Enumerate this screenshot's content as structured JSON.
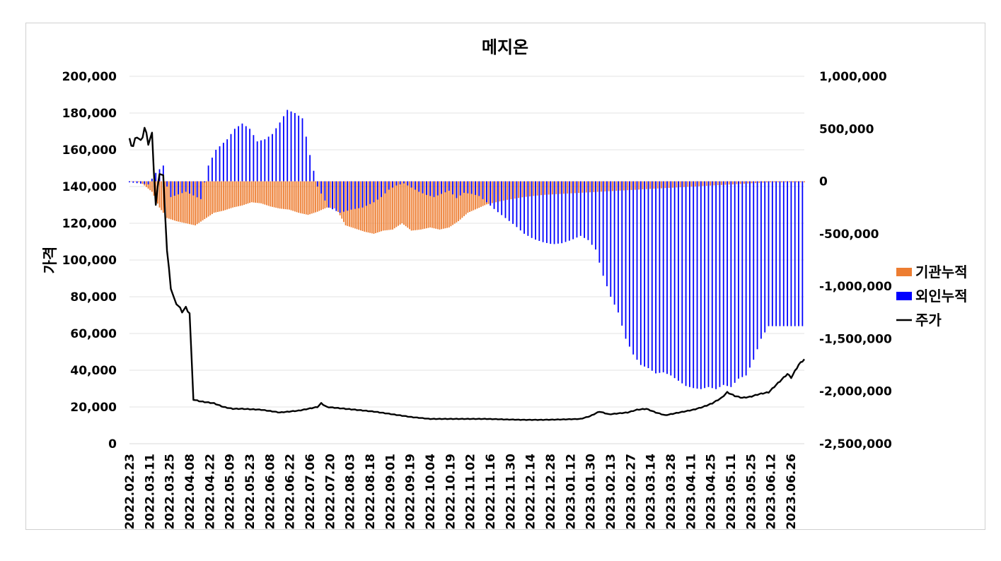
{
  "chart_data": {
    "type": "bar",
    "title": "메지온",
    "ylabel": "가격",
    "y2label": "",
    "ylim": [
      0,
      200000
    ],
    "y2lim": [
      -2500000,
      1000000
    ],
    "y_ticks": [
      "200,000",
      "180,000",
      "160,000",
      "140,000",
      "120,000",
      "100,000",
      "80,000",
      "60,000",
      "40,000",
      "20,000",
      "0"
    ],
    "y2_ticks": [
      "1,000,000",
      "500,000",
      "0",
      "-500,000",
      "-1,000,000",
      "-1,500,000",
      "-2,000,000",
      "-2,500,000"
    ],
    "x_labels": [
      "2022.02.23",
      "2022.03.11",
      "2022.03.25",
      "2022.04.08",
      "2022.04.22",
      "2022.05.09",
      "2022.05.23",
      "2022.06.08",
      "2022.06.22",
      "2022.07.06",
      "2022.07.20",
      "2022.08.03",
      "2022.08.18",
      "2022.09.01",
      "2022.09.19",
      "2022.10.04",
      "2022.10.19",
      "2022.11.02",
      "2022.11.16",
      "2022.11.30",
      "2022.12.14",
      "2022.12.28",
      "2023.01.12",
      "2023.01.30",
      "2023.02.13",
      "2023.02.27",
      "2023.03.14",
      "2023.03.28",
      "2023.04.11",
      "2023.04.25",
      "2023.05.11",
      "2023.05.25",
      "2023.06.12",
      "2023.06.26"
    ],
    "legend_position": "right",
    "grid": true,
    "series": [
      {
        "name": "기관누적",
        "type": "bar",
        "axis": "right",
        "color": "#ED7D31",
        "knots": [
          [
            0,
            0
          ],
          [
            6,
            -10000
          ],
          [
            12,
            -100000
          ],
          [
            16,
            -250000
          ],
          [
            20,
            -350000
          ],
          [
            25,
            -380000
          ],
          [
            30,
            -400000
          ],
          [
            35,
            -420000
          ],
          [
            40,
            -360000
          ],
          [
            45,
            -300000
          ],
          [
            50,
            -280000
          ],
          [
            55,
            -250000
          ],
          [
            60,
            -230000
          ],
          [
            65,
            -200000
          ],
          [
            70,
            -210000
          ],
          [
            75,
            -240000
          ],
          [
            80,
            -260000
          ],
          [
            85,
            -270000
          ],
          [
            90,
            -300000
          ],
          [
            95,
            -320000
          ],
          [
            100,
            -290000
          ],
          [
            105,
            -250000
          ],
          [
            110,
            -260000
          ],
          [
            115,
            -420000
          ],
          [
            120,
            -450000
          ],
          [
            125,
            -480000
          ],
          [
            130,
            -500000
          ],
          [
            135,
            -470000
          ],
          [
            140,
            -460000
          ],
          [
            145,
            -400000
          ],
          [
            150,
            -470000
          ],
          [
            155,
            -460000
          ],
          [
            160,
            -440000
          ],
          [
            165,
            -460000
          ],
          [
            170,
            -440000
          ],
          [
            175,
            -380000
          ],
          [
            180,
            -300000
          ],
          [
            185,
            -260000
          ],
          [
            190,
            -220000
          ],
          [
            195,
            -200000
          ],
          [
            200,
            -180000
          ],
          [
            210,
            -150000
          ],
          [
            220,
            -130000
          ],
          [
            230,
            -120000
          ],
          [
            240,
            -110000
          ],
          [
            250,
            -100000
          ],
          [
            260,
            -90000
          ],
          [
            270,
            -80000
          ],
          [
            280,
            -70000
          ],
          [
            290,
            -60000
          ],
          [
            300,
            -50000
          ],
          [
            310,
            -40000
          ],
          [
            320,
            -30000
          ],
          [
            330,
            -20000
          ],
          [
            340,
            -10000
          ]
        ]
      },
      {
        "name": "외인누적",
        "type": "bar",
        "axis": "right",
        "color": "#0000FF",
        "knots": [
          [
            0,
            -10000
          ],
          [
            5,
            -20000
          ],
          [
            10,
            -30000
          ],
          [
            14,
            80000
          ],
          [
            18,
            150000
          ],
          [
            20,
            -50000
          ],
          [
            22,
            -150000
          ],
          [
            30,
            -100000
          ],
          [
            38,
            -170000
          ],
          [
            42,
            150000
          ],
          [
            46,
            300000
          ],
          [
            52,
            400000
          ],
          [
            56,
            500000
          ],
          [
            60,
            550000
          ],
          [
            64,
            500000
          ],
          [
            68,
            380000
          ],
          [
            72,
            400000
          ],
          [
            76,
            450000
          ],
          [
            80,
            560000
          ],
          [
            84,
            680000
          ],
          [
            88,
            650000
          ],
          [
            92,
            600000
          ],
          [
            96,
            250000
          ],
          [
            100,
            -50000
          ],
          [
            106,
            -250000
          ],
          [
            112,
            -300000
          ],
          [
            118,
            -270000
          ],
          [
            124,
            -250000
          ],
          [
            130,
            -200000
          ],
          [
            134,
            -150000
          ],
          [
            138,
            -80000
          ],
          [
            142,
            -40000
          ],
          [
            146,
            -20000
          ],
          [
            150,
            -60000
          ],
          [
            154,
            -100000
          ],
          [
            158,
            -130000
          ],
          [
            162,
            -150000
          ],
          [
            166,
            -120000
          ],
          [
            170,
            -90000
          ],
          [
            174,
            -160000
          ],
          [
            178,
            -110000
          ],
          [
            182,
            -120000
          ],
          [
            186,
            -140000
          ],
          [
            190,
            -200000
          ],
          [
            195,
            -280000
          ],
          [
            200,
            -350000
          ],
          [
            205,
            -420000
          ],
          [
            210,
            -500000
          ],
          [
            215,
            -550000
          ],
          [
            220,
            -580000
          ],
          [
            225,
            -600000
          ],
          [
            230,
            -590000
          ],
          [
            235,
            -560000
          ],
          [
            240,
            -520000
          ],
          [
            244,
            -560000
          ],
          [
            248,
            -650000
          ],
          [
            252,
            -900000
          ],
          [
            256,
            -1100000
          ],
          [
            260,
            -1250000
          ],
          [
            264,
            -1500000
          ],
          [
            268,
            -1650000
          ],
          [
            272,
            -1750000
          ],
          [
            276,
            -1780000
          ],
          [
            280,
            -1830000
          ],
          [
            284,
            -1820000
          ],
          [
            288,
            -1850000
          ],
          [
            292,
            -1900000
          ],
          [
            296,
            -1950000
          ],
          [
            300,
            -1970000
          ],
          [
            304,
            -1980000
          ],
          [
            308,
            -1960000
          ],
          [
            312,
            -1980000
          ],
          [
            316,
            -1940000
          ],
          [
            320,
            -1960000
          ],
          [
            324,
            -1880000
          ],
          [
            328,
            -1850000
          ],
          [
            332,
            -1700000
          ],
          [
            336,
            -1500000
          ],
          [
            340,
            -1380000
          ]
        ]
      },
      {
        "name": "주가",
        "type": "line",
        "axis": "left",
        "color": "#000000",
        "knots": [
          [
            0,
            165000
          ],
          [
            2,
            162000
          ],
          [
            4,
            168000
          ],
          [
            6,
            164000
          ],
          [
            8,
            172000
          ],
          [
            10,
            164000
          ],
          [
            12,
            168000
          ],
          [
            14,
            130000
          ],
          [
            16,
            148000
          ],
          [
            18,
            145000
          ],
          [
            20,
            105000
          ],
          [
            22,
            85000
          ],
          [
            24,
            78000
          ],
          [
            26,
            75000
          ],
          [
            28,
            72000
          ],
          [
            30,
            74000
          ],
          [
            32,
            71000
          ],
          [
            34,
            24000
          ],
          [
            38,
            23000
          ],
          [
            45,
            22000
          ],
          [
            50,
            20000
          ],
          [
            55,
            19000
          ],
          [
            60,
            19000
          ],
          [
            70,
            18500
          ],
          [
            80,
            17000
          ],
          [
            90,
            18000
          ],
          [
            100,
            20000
          ],
          [
            102,
            22000
          ],
          [
            105,
            20000
          ],
          [
            115,
            19000
          ],
          [
            120,
            18500
          ],
          [
            130,
            17500
          ],
          [
            140,
            16000
          ],
          [
            150,
            14500
          ],
          [
            160,
            13500
          ],
          [
            170,
            13500
          ],
          [
            180,
            13500
          ],
          [
            190,
            13500
          ],
          [
            200,
            13200
          ],
          [
            210,
            13000
          ],
          [
            220,
            13000
          ],
          [
            230,
            13200
          ],
          [
            240,
            13500
          ],
          [
            245,
            15000
          ],
          [
            250,
            17500
          ],
          [
            255,
            16000
          ],
          [
            260,
            16500
          ],
          [
            265,
            17000
          ],
          [
            270,
            18500
          ],
          [
            275,
            19000
          ],
          [
            280,
            17000
          ],
          [
            285,
            15500
          ],
          [
            290,
            16500
          ],
          [
            295,
            17500
          ],
          [
            300,
            18500
          ],
          [
            305,
            20000
          ],
          [
            310,
            22000
          ],
          [
            315,
            25000
          ],
          [
            318,
            28000
          ],
          [
            322,
            26000
          ],
          [
            326,
            25000
          ],
          [
            330,
            25500
          ],
          [
            335,
            27000
          ],
          [
            340,
            28000
          ],
          [
            345,
            33000
          ],
          [
            350,
            38000
          ],
          [
            352,
            36000
          ],
          [
            356,
            43000
          ],
          [
            359,
            46000
          ]
        ]
      }
    ]
  }
}
